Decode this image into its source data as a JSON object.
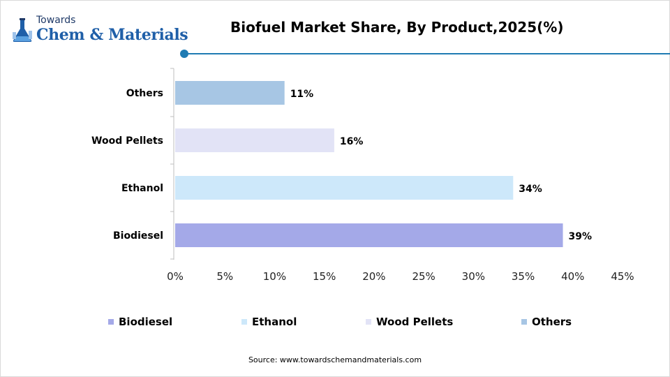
{
  "header": {
    "logo_top": "Towards",
    "logo_main": "Chem & Materials",
    "title": "Biofuel Market Share, By Product,2025(%)",
    "accent_color": "#1f7bb3"
  },
  "chart_data": {
    "type": "bar",
    "orientation": "horizontal",
    "categories": [
      "Biodiesel",
      "Ethanol",
      "Wood Pellets",
      "Others"
    ],
    "values": [
      39,
      34,
      16,
      11
    ],
    "value_labels": [
      "39%",
      "34%",
      "16%",
      "11%"
    ],
    "colors": [
      "#a4a9e8",
      "#cde8fa",
      "#e2e3f6",
      "#a7c6e4"
    ],
    "xlim": [
      0,
      45
    ],
    "xticks": [
      "0%",
      "5%",
      "10%",
      "15%",
      "20%",
      "25%",
      "30%",
      "35%",
      "40%",
      "45%"
    ],
    "xlabel": "",
    "ylabel": "",
    "grid": false,
    "legend_position": "bottom",
    "legend": [
      "Biodiesel",
      "Ethanol",
      "Wood Pellets",
      "Others"
    ]
  },
  "footer": {
    "source": "Source: www.towardschemandmaterials.com"
  }
}
